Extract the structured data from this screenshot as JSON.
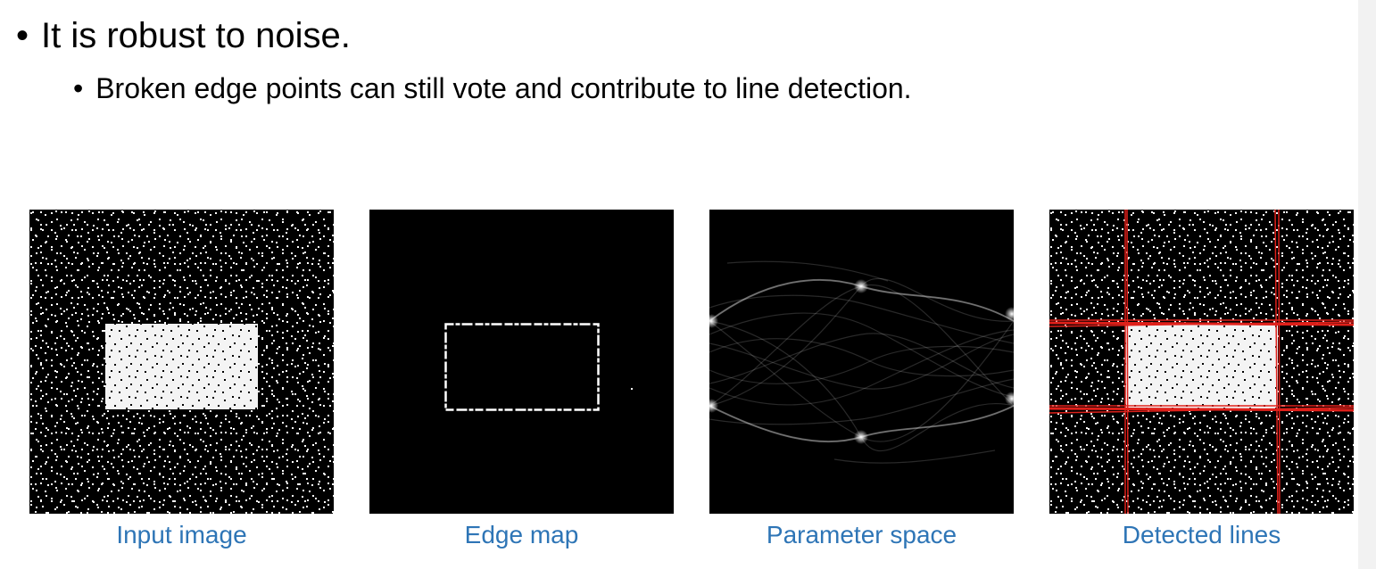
{
  "bullets": {
    "level1": "It is robust to noise.",
    "level2": "Broken edge points can still vote and contribute to line detection.",
    "marker": "•"
  },
  "captions": {
    "input": "Input image",
    "edge": "Edge map",
    "param": "Parameter space",
    "detected": "Detected lines"
  },
  "colors": {
    "caption": "#2e75b6",
    "line": "#e0201a"
  }
}
